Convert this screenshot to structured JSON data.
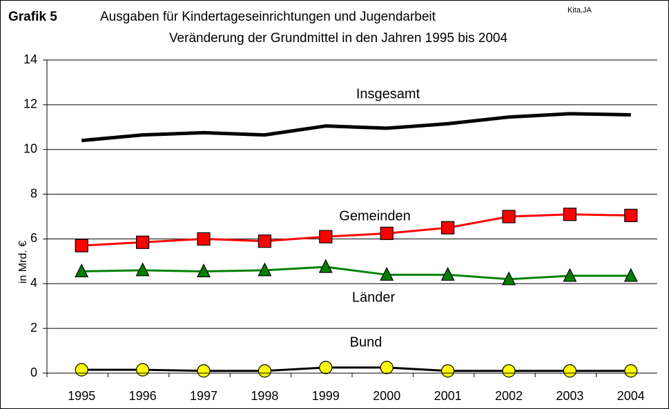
{
  "chart_data": {
    "type": "line",
    "label": "Grafik 5",
    "title": "Ausgaben für Kindertageseinrichtungen und Jugendarbeit",
    "title_superscript": "Kita,JA",
    "subtitle": "Veränderung der Grundmittel in den Jahren 1995 bis 2004",
    "ylabel": "in Mrd. €",
    "categories": [
      "1995",
      "1996",
      "1997",
      "1998",
      "1999",
      "2000",
      "2001",
      "2002",
      "2003",
      "2004"
    ],
    "series": [
      {
        "name": "Insgesamt",
        "color": "#000000",
        "marker": "none",
        "values": [
          10.4,
          10.65,
          10.75,
          10.65,
          11.05,
          10.95,
          11.15,
          11.45,
          11.6,
          11.55
        ]
      },
      {
        "name": "Gemeinden",
        "color": "#ff0000",
        "marker": "square",
        "marker_color": "#ff0000",
        "values": [
          5.7,
          5.85,
          6.0,
          5.9,
          6.1,
          6.25,
          6.5,
          7.0,
          7.1,
          7.05
        ]
      },
      {
        "name": "Länder",
        "color": "#008000",
        "marker": "triangle",
        "marker_color": "#008000",
        "values": [
          4.55,
          4.6,
          4.55,
          4.6,
          4.75,
          4.4,
          4.4,
          4.2,
          4.35,
          4.35
        ]
      },
      {
        "name": "Bund",
        "color": "#000000",
        "marker": "circle",
        "marker_color": "#ffff00",
        "values": [
          0.15,
          0.15,
          0.1,
          0.1,
          0.25,
          0.25,
          0.1,
          0.1,
          0.1,
          0.1
        ]
      }
    ],
    "ylim": [
      0,
      14
    ],
    "yticks": [
      0,
      2,
      4,
      6,
      8,
      10,
      12,
      14
    ],
    "grid": true
  }
}
